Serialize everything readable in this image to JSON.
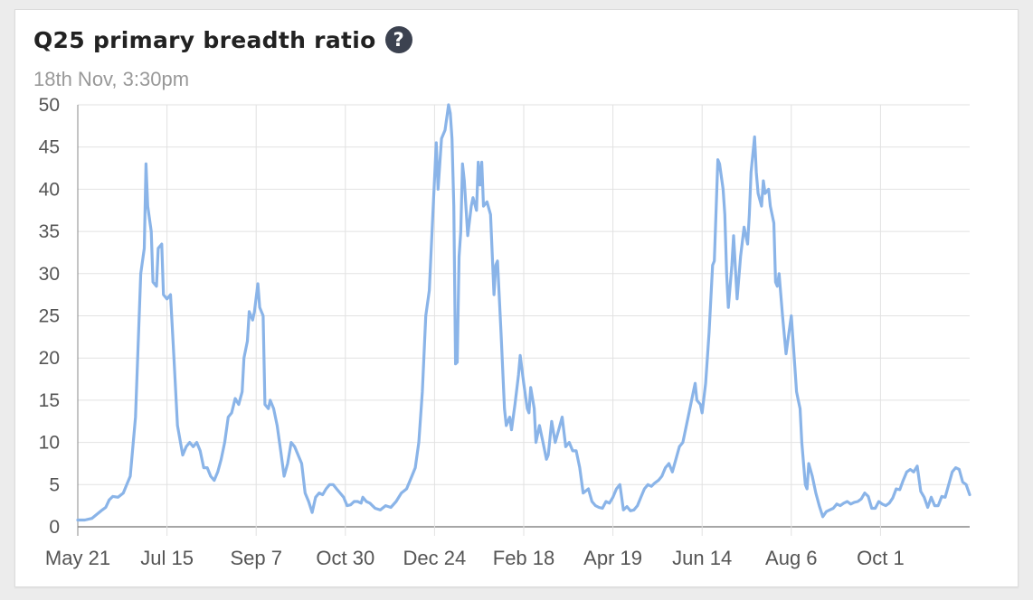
{
  "card": {
    "title": "Q25 primary breadth ratio",
    "help_icon": "question-circle-icon",
    "help_glyph": "?",
    "subtitle": "18th Nov, 3:30pm"
  },
  "colors": {
    "line": "#8ab4e8",
    "grid": "#e2e2e2",
    "axis": "#888888"
  },
  "chart_data": {
    "type": "line",
    "title": "Q25 primary breadth ratio",
    "xlabel": "",
    "ylabel": "",
    "ylim": [
      0,
      50
    ],
    "yticks": [
      0,
      5,
      10,
      15,
      20,
      25,
      30,
      35,
      40,
      45,
      50
    ],
    "xticks": [
      "May 21",
      "Jul 15",
      "Sep 7",
      "Oct 30",
      "Dec 24",
      "Feb 18",
      "Apr 19",
      "Jun 14",
      "Aug 6",
      "Oct 1"
    ],
    "grid": true,
    "legend": "none",
    "series": [
      {
        "values": [
          [
            0,
            0.8
          ],
          [
            4,
            0.8
          ],
          [
            8,
            1
          ],
          [
            11,
            1.5
          ],
          [
            14,
            2
          ],
          [
            16,
            2.3
          ],
          [
            18,
            3.2
          ],
          [
            20,
            3.6
          ],
          [
            23,
            3.5
          ],
          [
            26,
            4
          ],
          [
            28,
            5
          ],
          [
            30,
            6
          ],
          [
            33,
            13
          ],
          [
            36,
            30
          ],
          [
            38,
            33
          ],
          [
            39,
            43
          ],
          [
            40,
            38
          ],
          [
            42,
            35
          ],
          [
            43,
            29
          ],
          [
            45,
            28.5
          ],
          [
            46,
            33
          ],
          [
            48,
            33.5
          ],
          [
            49,
            27.5
          ],
          [
            51,
            27
          ],
          [
            53,
            27.5
          ],
          [
            55,
            20
          ],
          [
            57,
            12
          ],
          [
            60,
            8.5
          ],
          [
            62,
            9.5
          ],
          [
            64,
            10
          ],
          [
            66,
            9.5
          ],
          [
            68,
            10
          ],
          [
            70,
            9
          ],
          [
            72,
            7
          ],
          [
            74,
            7
          ],
          [
            76,
            6
          ],
          [
            78,
            5.5
          ],
          [
            80,
            6.5
          ],
          [
            82,
            8
          ],
          [
            84,
            10
          ],
          [
            86,
            13
          ],
          [
            88,
            13.5
          ],
          [
            90,
            15.2
          ],
          [
            92,
            14.5
          ],
          [
            94,
            16
          ],
          [
            95,
            20
          ],
          [
            97,
            22
          ],
          [
            98,
            25.5
          ],
          [
            100,
            24.5
          ],
          [
            101,
            25.5
          ],
          [
            103,
            28.8
          ],
          [
            104,
            26
          ],
          [
            106,
            25
          ],
          [
            107,
            14.5
          ],
          [
            109,
            14
          ],
          [
            110,
            15
          ],
          [
            112,
            14
          ],
          [
            114,
            12
          ],
          [
            116,
            9
          ],
          [
            118,
            6
          ],
          [
            120,
            7.5
          ],
          [
            122,
            10
          ],
          [
            124,
            9.5
          ],
          [
            126,
            8.5
          ],
          [
            128,
            7.5
          ],
          [
            130,
            4
          ],
          [
            132,
            3
          ],
          [
            134,
            1.7
          ],
          [
            136,
            3.5
          ],
          [
            138,
            4
          ],
          [
            140,
            3.8
          ],
          [
            142,
            4.5
          ],
          [
            144,
            5
          ],
          [
            146,
            5
          ],
          [
            148,
            4.5
          ],
          [
            150,
            4
          ],
          [
            152,
            3.5
          ],
          [
            154,
            2.5
          ],
          [
            156,
            2.6
          ],
          [
            158,
            3
          ],
          [
            160,
            3
          ],
          [
            162,
            2.8
          ],
          [
            163,
            3.5
          ],
          [
            165,
            3
          ],
          [
            167,
            2.8
          ],
          [
            170,
            2.2
          ],
          [
            173,
            2
          ],
          [
            176,
            2.5
          ],
          [
            179,
            2.3
          ],
          [
            182,
            3
          ],
          [
            185,
            4
          ],
          [
            188,
            4.5
          ],
          [
            191,
            6
          ],
          [
            193,
            7
          ],
          [
            195,
            10
          ],
          [
            197,
            16
          ],
          [
            199,
            25
          ],
          [
            201,
            28
          ],
          [
            203,
            37
          ],
          [
            205,
            45.5
          ],
          [
            206,
            40
          ],
          [
            208,
            46
          ],
          [
            210,
            47
          ],
          [
            212,
            50
          ],
          [
            213,
            49
          ],
          [
            214,
            46
          ],
          [
            215,
            38
          ],
          [
            216,
            19.3
          ],
          [
            217,
            19.5
          ],
          [
            218,
            32
          ],
          [
            219,
            35
          ],
          [
            220,
            43
          ],
          [
            221,
            41
          ],
          [
            223,
            34.5
          ],
          [
            225,
            38
          ],
          [
            226,
            39
          ],
          [
            228,
            37.5
          ],
          [
            229,
            43.2
          ],
          [
            230,
            40.5
          ],
          [
            231,
            43.2
          ],
          [
            232,
            38
          ],
          [
            234,
            38.5
          ],
          [
            236,
            37
          ],
          [
            238,
            27.5
          ],
          [
            239,
            31
          ],
          [
            240,
            31.5
          ],
          [
            242,
            23
          ],
          [
            244,
            14
          ],
          [
            245,
            12
          ],
          [
            247,
            13
          ],
          [
            248,
            11.5
          ],
          [
            250,
            14.5
          ],
          [
            252,
            18
          ],
          [
            253,
            20.3
          ],
          [
            255,
            17
          ],
          [
            257,
            14
          ],
          [
            258,
            13.5
          ],
          [
            259,
            16.5
          ],
          [
            261,
            14
          ],
          [
            262,
            10
          ],
          [
            264,
            12
          ],
          [
            266,
            10
          ],
          [
            268,
            8
          ],
          [
            269,
            8.5
          ],
          [
            271,
            12.5
          ],
          [
            273,
            10
          ],
          [
            275,
            11.5
          ],
          [
            277,
            13
          ],
          [
            279,
            9.5
          ],
          [
            281,
            10
          ],
          [
            283,
            9
          ],
          [
            285,
            9
          ],
          [
            287,
            7
          ],
          [
            289,
            4
          ],
          [
            292,
            4.5
          ],
          [
            294,
            3
          ],
          [
            296,
            2.5
          ],
          [
            298,
            2.3
          ],
          [
            300,
            2.2
          ],
          [
            302,
            3
          ],
          [
            304,
            2.8
          ],
          [
            306,
            3.5
          ],
          [
            308,
            4.5
          ],
          [
            310,
            5
          ],
          [
            312,
            2
          ],
          [
            314,
            2.4
          ],
          [
            316,
            1.9
          ],
          [
            318,
            2
          ],
          [
            320,
            2.5
          ],
          [
            322,
            3.5
          ],
          [
            324,
            4.5
          ],
          [
            326,
            5
          ],
          [
            328,
            4.8
          ],
          [
            330,
            5.2
          ],
          [
            332,
            5.5
          ],
          [
            334,
            6
          ],
          [
            336,
            7
          ],
          [
            338,
            7.5
          ],
          [
            340,
            6.5
          ],
          [
            342,
            8
          ],
          [
            344,
            9.5
          ],
          [
            346,
            10
          ],
          [
            348,
            12
          ],
          [
            350,
            14
          ],
          [
            352,
            16
          ],
          [
            353,
            17
          ],
          [
            354,
            15
          ],
          [
            356,
            14.5
          ],
          [
            357,
            13.5
          ],
          [
            359,
            17
          ],
          [
            361,
            23
          ],
          [
            363,
            31
          ],
          [
            364,
            31.5
          ],
          [
            366,
            43.5
          ],
          [
            367,
            43
          ],
          [
            369,
            40
          ],
          [
            370,
            37
          ],
          [
            371,
            30
          ],
          [
            372,
            26
          ],
          [
            374,
            31
          ],
          [
            375,
            34.5
          ],
          [
            377,
            27
          ],
          [
            379,
            32
          ],
          [
            381,
            35.5
          ],
          [
            383,
            33.5
          ],
          [
            384,
            37
          ],
          [
            385,
            42
          ],
          [
            387,
            46.2
          ],
          [
            388,
            42
          ],
          [
            389,
            39.5
          ],
          [
            391,
            38
          ],
          [
            392,
            41
          ],
          [
            393,
            39.5
          ],
          [
            395,
            40
          ],
          [
            396,
            38
          ],
          [
            398,
            36
          ],
          [
            399,
            29
          ],
          [
            400,
            28.5
          ],
          [
            401,
            30
          ],
          [
            403,
            25
          ],
          [
            405,
            20.5
          ],
          [
            406,
            22
          ],
          [
            408,
            25
          ],
          [
            410,
            19
          ],
          [
            411,
            16
          ],
          [
            412,
            15
          ],
          [
            413,
            14
          ],
          [
            414,
            10
          ],
          [
            416,
            5
          ],
          [
            417,
            4.5
          ],
          [
            418,
            7.5
          ],
          [
            420,
            6
          ],
          [
            422,
            4
          ],
          [
            424,
            2.5
          ],
          [
            426,
            1.2
          ],
          [
            428,
            1.8
          ],
          [
            430,
            2
          ],
          [
            432,
            2.2
          ],
          [
            434,
            2.7
          ],
          [
            436,
            2.5
          ],
          [
            438,
            2.8
          ],
          [
            440,
            3
          ],
          [
            442,
            2.7
          ],
          [
            444,
            2.9
          ],
          [
            446,
            3
          ],
          [
            448,
            3.3
          ],
          [
            450,
            4
          ],
          [
            452,
            3.6
          ],
          [
            454,
            2.2
          ],
          [
            456,
            2.2
          ],
          [
            458,
            3
          ],
          [
            460,
            2.7
          ],
          [
            462,
            2.5
          ],
          [
            464,
            2.8
          ],
          [
            466,
            3.4
          ],
          [
            468,
            4.5
          ],
          [
            470,
            4.4
          ],
          [
            472,
            5.5
          ],
          [
            474,
            6.5
          ],
          [
            476,
            6.8
          ],
          [
            478,
            6.5
          ],
          [
            480,
            7.2
          ],
          [
            482,
            4.2
          ],
          [
            484,
            3.5
          ],
          [
            486,
            2.3
          ],
          [
            488,
            3.5
          ],
          [
            490,
            2.5
          ],
          [
            492,
            2.5
          ],
          [
            494,
            3.6
          ],
          [
            496,
            3.5
          ],
          [
            498,
            5
          ],
          [
            500,
            6.5
          ],
          [
            502,
            7
          ],
          [
            504,
            6.8
          ],
          [
            506,
            5.3
          ],
          [
            508,
            5
          ],
          [
            510,
            3.8
          ]
        ]
      }
    ]
  }
}
